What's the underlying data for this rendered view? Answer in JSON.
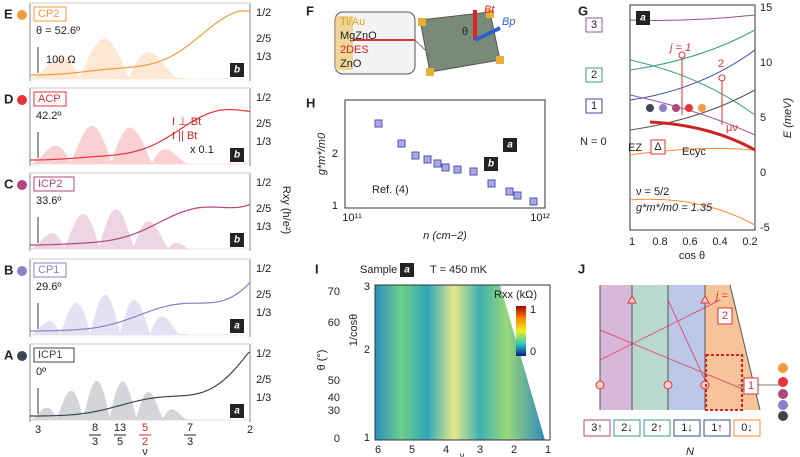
{
  "left": {
    "panels": [
      {
        "letter": "E",
        "name": "CP2",
        "angle": "θ = 52.6º",
        "badge": "b",
        "color": "#f39a3c"
      },
      {
        "letter": "D",
        "name": "ACP",
        "angle": "42.2º",
        "badge": "b",
        "color": "#e8323c"
      },
      {
        "letter": "C",
        "name": "ICP2",
        "angle": "33.6º",
        "badge": "b",
        "color": "#b0457f"
      },
      {
        "letter": "B",
        "name": "CP1",
        "angle": "29.6º",
        "badge": "a",
        "color": "#8a7fc8"
      },
      {
        "letter": "A",
        "name": "ICP1",
        "angle": "0º",
        "badge": "a",
        "color": "#3c4650"
      }
    ],
    "scale_bar": "100 Ω",
    "legend_perp": "I ⊥ Bt",
    "legend_par": "I || Bt",
    "factor": "x 0.1",
    "right_ticks": [
      "1/2",
      "2/5",
      "1/3"
    ],
    "y_label": "Rxy (h/e²)",
    "x_ticks": [
      "3",
      "2"
    ],
    "fractions": [
      {
        "num": "8",
        "den": "3"
      },
      {
        "num": "13",
        "den": "5"
      },
      {
        "num": "5",
        "den": "2"
      },
      {
        "num": "7",
        "den": "3"
      }
    ],
    "x_label": "ν"
  },
  "panel_f": {
    "letter": "F",
    "layers": [
      "Ti/Au",
      "MgZnO",
      "2DES",
      "ZnO"
    ],
    "bt": "Bt",
    "theta": "θ",
    "bp": "Bp"
  },
  "panel_g": {
    "letter": "G",
    "badge": "a",
    "levels": [
      "3",
      "2",
      "1",
      "N = 0"
    ],
    "j1": "j = 1",
    "j2": "2",
    "mu": "μν",
    "ez": "EZ",
    "delta": "Δ",
    "ecyc": "Ecyc",
    "nu": "ν = 5/2",
    "g": "g*m*/m0 = 1.35",
    "yticks": [
      "15",
      "10",
      "5",
      "0",
      "-5"
    ],
    "xticks": [
      "1",
      "0.8",
      "0.6",
      "0.4",
      "0.2"
    ],
    "y_label": "E (meV)",
    "x_label": "cos θ"
  },
  "panel_h": {
    "letter": "H",
    "ref": "Ref. (4)",
    "badge_b": "b",
    "badge_a": "a",
    "y_label": "g*m*/m0",
    "x_label": "n (cm−2)",
    "yticks": [
      "2",
      "1"
    ],
    "xticks": [
      "10¹¹",
      "10¹²"
    ]
  },
  "panel_i": {
    "letter": "I",
    "sample": "Sample",
    "badge": "a",
    "temp": "T = 450 mK",
    "rxx": "Rxx (kΩ)",
    "scale": [
      "1",
      "0"
    ],
    "theta_ticks": [
      "70",
      "60",
      "50",
      "40",
      "30",
      "0"
    ],
    "cos_ticks": [
      "3",
      "2",
      "1"
    ],
    "y_label": "θ (°)",
    "y2_label": "1/cosθ",
    "xticks": [
      "6",
      "5",
      "4",
      "3",
      "2",
      "1"
    ],
    "x_label": "ν"
  },
  "panel_j": {
    "letter": "J",
    "j": "j =",
    "j2": "2",
    "j1": "1",
    "levels": [
      "3↑",
      "2↓",
      "2↑",
      "1↓",
      "1↑",
      "0↓"
    ],
    "x_label": "N"
  }
}
